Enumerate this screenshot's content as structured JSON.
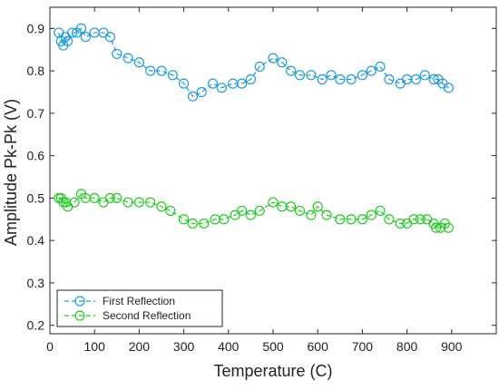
{
  "chart_data": {
    "type": "line",
    "xlabel": "Temperature (C)",
    "ylabel": "Amplitude Pk-Pk (V)",
    "xlim": [
      0,
      1000
    ],
    "ylim": [
      0.18,
      0.95
    ],
    "xticks": [
      "0",
      "100",
      "200",
      "300",
      "400",
      "500",
      "600",
      "700",
      "800",
      "900"
    ],
    "yticks": [
      "0.2",
      "0.3",
      "0.4",
      "0.5",
      "0.6",
      "0.7",
      "0.8",
      "0.9"
    ],
    "grid": false,
    "legend_position": "bottom-left",
    "series": [
      {
        "name": "First Reflection",
        "color": "#1f9bd8",
        "style": "dashed-line-circle-markers",
        "x": [
          20,
          25,
          30,
          35,
          40,
          50,
          60,
          70,
          80,
          100,
          120,
          135,
          150,
          175,
          200,
          225,
          250,
          275,
          300,
          320,
          340,
          365,
          385,
          410,
          430,
          450,
          470,
          500,
          520,
          540,
          560,
          585,
          610,
          630,
          650,
          675,
          700,
          720,
          740,
          760,
          785,
          800,
          820,
          840,
          860,
          870,
          880,
          893
        ],
        "y": [
          0.89,
          0.87,
          0.86,
          0.88,
          0.87,
          0.89,
          0.89,
          0.9,
          0.88,
          0.89,
          0.89,
          0.88,
          0.84,
          0.83,
          0.82,
          0.8,
          0.8,
          0.79,
          0.77,
          0.74,
          0.75,
          0.77,
          0.76,
          0.77,
          0.77,
          0.78,
          0.81,
          0.83,
          0.82,
          0.8,
          0.79,
          0.79,
          0.78,
          0.79,
          0.78,
          0.78,
          0.79,
          0.8,
          0.81,
          0.78,
          0.77,
          0.78,
          0.78,
          0.79,
          0.78,
          0.78,
          0.77,
          0.76
        ]
      },
      {
        "name": "Second Reflection",
        "color": "#22cc22",
        "style": "dashed-line-circle-markers",
        "x": [
          20,
          25,
          30,
          35,
          40,
          55,
          70,
          80,
          100,
          120,
          135,
          150,
          175,
          200,
          225,
          250,
          270,
          300,
          320,
          345,
          370,
          390,
          415,
          430,
          450,
          470,
          500,
          520,
          540,
          560,
          585,
          600,
          620,
          650,
          675,
          700,
          720,
          740,
          760,
          785,
          800,
          815,
          830,
          845,
          860,
          865,
          875,
          885,
          893
        ],
        "y": [
          0.5,
          0.5,
          0.49,
          0.49,
          0.48,
          0.49,
          0.51,
          0.5,
          0.5,
          0.49,
          0.5,
          0.5,
          0.49,
          0.49,
          0.49,
          0.48,
          0.47,
          0.45,
          0.44,
          0.44,
          0.45,
          0.45,
          0.46,
          0.47,
          0.46,
          0.47,
          0.49,
          0.48,
          0.48,
          0.47,
          0.46,
          0.48,
          0.46,
          0.45,
          0.45,
          0.45,
          0.46,
          0.47,
          0.45,
          0.44,
          0.44,
          0.45,
          0.45,
          0.45,
          0.44,
          0.43,
          0.43,
          0.44,
          0.43
        ]
      }
    ]
  }
}
